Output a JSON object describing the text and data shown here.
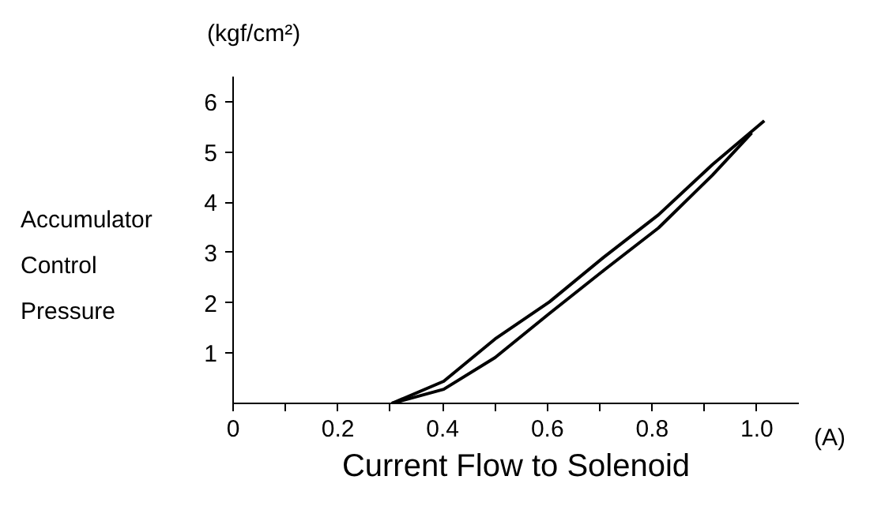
{
  "chart_data": {
    "type": "line",
    "xlabel": "Current Flow to Solenoid",
    "ylabel": "Accumulator Control Pressure",
    "annotations": [
      "(kgf/cm²)",
      "(A)"
    ],
    "xlim": [
      0,
      1.08
    ],
    "ylim": [
      0,
      6.5
    ],
    "xticks": [
      0,
      {
        "value": 0.1,
        "label": null
      },
      0.2,
      {
        "value": 0.3,
        "label": null
      },
      0.4,
      {
        "value": 0.5,
        "label": null
      },
      0.6,
      {
        "value": 0.7,
        "label": null
      },
      0.8,
      {
        "value": 0.9,
        "label": null
      },
      {
        "value": 1.0,
        "label": "1.0"
      }
    ],
    "yticks": [
      1,
      2,
      3,
      4,
      5,
      6
    ],
    "grid": false,
    "marker": "none",
    "line_style": "solid",
    "series": [
      {
        "color": "#000000",
        "x": [
          0.303,
          0.402,
          0.5,
          0.604,
          0.708,
          0.812,
          0.915,
          1.014
        ],
        "values": [
          0,
          0.44,
          1.28,
          2.02,
          2.91,
          3.75,
          4.75,
          5.62
        ]
      },
      {
        "color": "#000000",
        "x": [
          0.303,
          0.402,
          0.5,
          0.604,
          0.708,
          0.812,
          0.915,
          0.99
        ],
        "values": [
          0,
          0.28,
          0.91,
          1.79,
          2.65,
          3.49,
          4.54,
          5.38
        ]
      }
    ]
  }
}
